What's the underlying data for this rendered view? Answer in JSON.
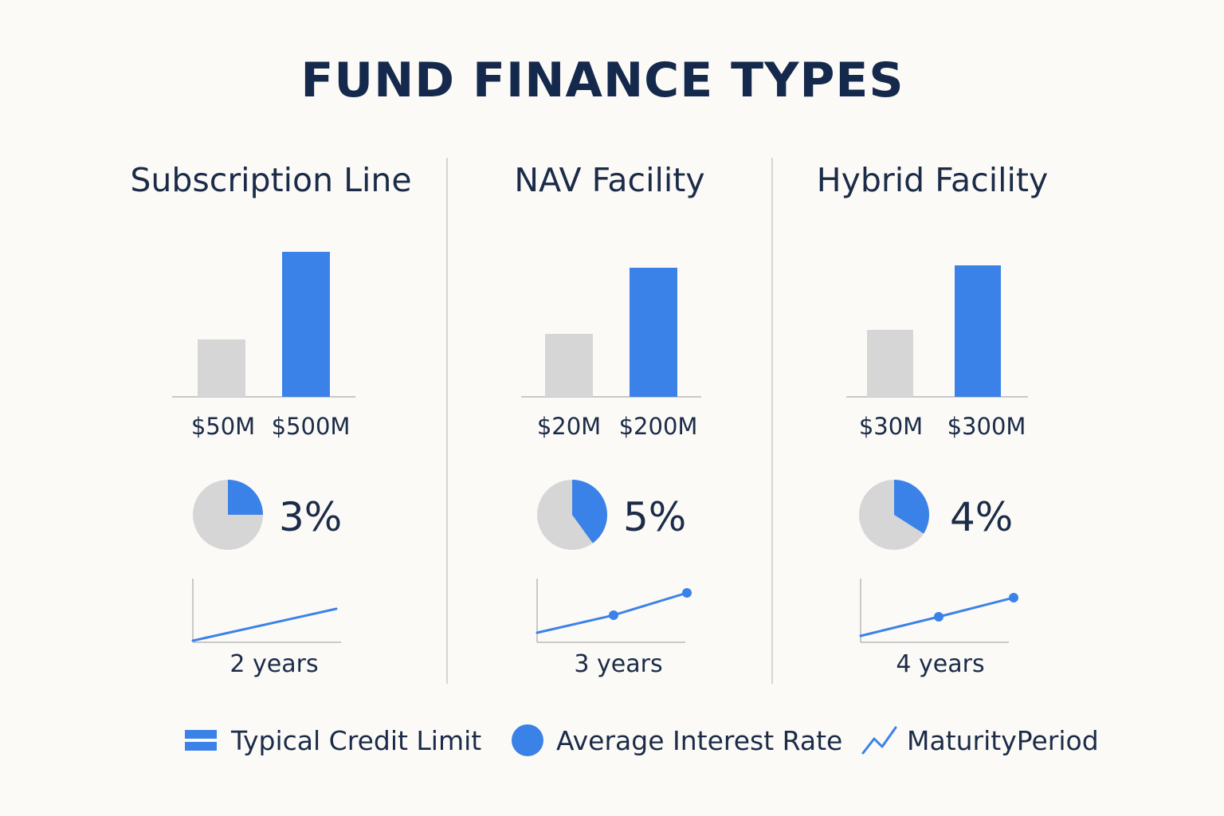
{
  "title": "FUND FINANCE TYPES",
  "colors": {
    "accent": "#3b82e8",
    "grey": "#d6d6d6",
    "axis": "#c9c9c9",
    "text": "#1b2b48"
  },
  "chart_data": [
    {
      "type": "bar",
      "title": "Subscription Line",
      "categories": [
        "$50M",
        "$500M"
      ],
      "values": [
        50,
        500
      ],
      "interest_rate": {
        "value": 3,
        "label": "3%"
      },
      "maturity": {
        "years": 2,
        "label": "2 years"
      }
    },
    {
      "type": "bar",
      "title": "NAV Facility",
      "categories": [
        "$20M",
        "$200M"
      ],
      "values": [
        20,
        200
      ],
      "interest_rate": {
        "value": 5,
        "label": "5%"
      },
      "maturity": {
        "years": 3,
        "label": "3 years"
      }
    },
    {
      "type": "bar",
      "title": "Hybrid Facility",
      "categories": [
        "$30M",
        "$300M"
      ],
      "values": [
        30,
        300
      ],
      "interest_rate": {
        "value": 4,
        "label": "4%"
      },
      "maturity": {
        "years": 4,
        "label": "4 years"
      }
    }
  ],
  "legend": [
    {
      "label": "Typical Credit Limit",
      "icon": "bar-legend-icon"
    },
    {
      "label": "Average Interest Rate",
      "icon": "circle-legend-icon"
    },
    {
      "label": "MaturityPeriod",
      "icon": "line-legend-icon"
    }
  ]
}
